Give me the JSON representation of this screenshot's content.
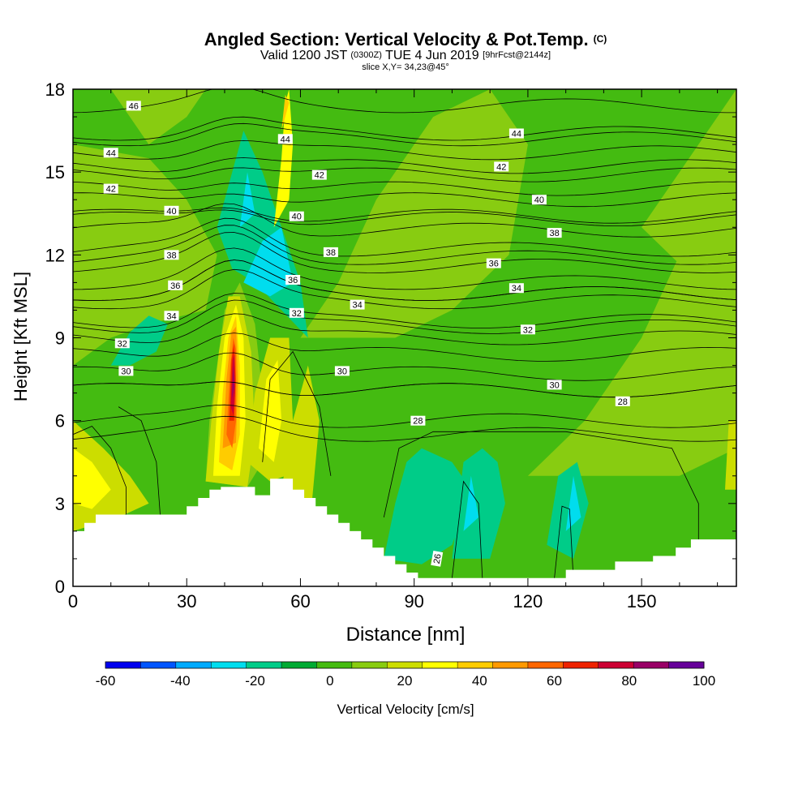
{
  "title": {
    "main": "Angled Section: Vertical Velocity & Pot.Temp.",
    "copyright": "(C)",
    "valid": "Valid 1200 JST",
    "utc": "(0300Z)",
    "date": "TUE 4 Jun 2019",
    "forecast": "[9hrFcst@2144z]",
    "slice": "slice X,Y= 34,23@45°"
  },
  "chart_data": {
    "type": "heatmap",
    "xlabel": "Distance [nm]",
    "ylabel": "Height [Kft MSL]",
    "xlim": [
      0,
      175
    ],
    "ylim": [
      0,
      18
    ],
    "x_ticks": [
      0,
      30,
      60,
      90,
      120,
      150
    ],
    "y_ticks": [
      0,
      3,
      6,
      9,
      12,
      15,
      18
    ],
    "colorbar": {
      "label": "Vertical Velocity [cm/s]",
      "tick_labels": [
        "-60",
        "-40",
        "-20",
        "0",
        "20",
        "40",
        "60",
        "80",
        "100"
      ],
      "bounds": [
        -60,
        -50,
        -40,
        -30,
        -20,
        -10,
        0,
        10,
        20,
        30,
        40,
        50,
        60,
        70,
        80,
        90,
        100
      ],
      "colors": [
        "#0000ee",
        "#0055ff",
        "#00aaff",
        "#00ddee",
        "#00cc88",
        "#00aa33",
        "#44bb11",
        "#88cc11",
        "#ccdd00",
        "#ffff00",
        "#ffcc00",
        "#ff9900",
        "#ff6600",
        "#ee2200",
        "#cc0033",
        "#990066",
        "#660099"
      ]
    },
    "background_value": 5,
    "regions": [
      {
        "value": 15,
        "poly": [
          [
            0,
            2
          ],
          [
            0,
            8
          ],
          [
            10,
            9
          ],
          [
            20,
            9.5
          ],
          [
            35,
            10
          ],
          [
            38,
            12
          ],
          [
            30,
            14
          ],
          [
            20,
            15.5
          ],
          [
            0,
            16
          ]
        ]
      },
      {
        "value": 15,
        "poly": [
          [
            60,
            9
          ],
          [
            70,
            11
          ],
          [
            80,
            14
          ],
          [
            95,
            17
          ],
          [
            110,
            18
          ],
          [
            120,
            16
          ],
          [
            115,
            12
          ],
          [
            100,
            10
          ],
          [
            85,
            9
          ]
        ]
      },
      {
        "value": 15,
        "poly": [
          [
            120,
            4
          ],
          [
            135,
            6
          ],
          [
            150,
            9
          ],
          [
            160,
            12
          ],
          [
            175,
            14
          ],
          [
            175,
            5
          ],
          [
            160,
            4
          ]
        ]
      },
      {
        "value": 15,
        "poly": [
          [
            10,
            18
          ],
          [
            20,
            16
          ],
          [
            30,
            17
          ],
          [
            35,
            18
          ]
        ]
      },
      {
        "value": 15,
        "poly": [
          [
            150,
            13
          ],
          [
            160,
            15
          ],
          [
            170,
            17
          ],
          [
            175,
            18
          ],
          [
            175,
            12
          ],
          [
            165,
            11
          ]
        ]
      },
      {
        "value": 25,
        "poly": [
          [
            0,
            2
          ],
          [
            0,
            6
          ],
          [
            8,
            5
          ],
          [
            15,
            4
          ],
          [
            20,
            3
          ],
          [
            12,
            2.5
          ]
        ]
      },
      {
        "value": 25,
        "poly": [
          [
            55,
            3.5
          ],
          [
            58,
            6
          ],
          [
            62,
            8
          ],
          [
            65,
            6
          ],
          [
            63,
            3
          ]
        ]
      },
      {
        "value": 35,
        "poly": [
          [
            0,
            3
          ],
          [
            0,
            5
          ],
          [
            5,
            4.5
          ],
          [
            10,
            3.5
          ],
          [
            5,
            2.8
          ]
        ]
      },
      {
        "value": -15,
        "poly": [
          [
            38,
            13
          ],
          [
            42,
            15
          ],
          [
            45,
            16.5
          ],
          [
            50,
            15
          ],
          [
            55,
            13
          ],
          [
            60,
            11
          ],
          [
            62,
            9
          ],
          [
            55,
            10
          ],
          [
            48,
            11
          ],
          [
            42,
            11.5
          ]
        ]
      },
      {
        "value": -15,
        "poly": [
          [
            10,
            8
          ],
          [
            15,
            9.2
          ],
          [
            20,
            9.8
          ],
          [
            25,
            9.5
          ],
          [
            22,
            8.5
          ],
          [
            15,
            8
          ]
        ]
      },
      {
        "value": -15,
        "poly": [
          [
            82,
            1
          ],
          [
            85,
            3
          ],
          [
            88,
            4.5
          ],
          [
            92,
            5
          ],
          [
            100,
            4.5
          ],
          [
            105,
            3.5
          ],
          [
            100,
            1.5
          ],
          [
            92,
            0.8
          ]
        ]
      },
      {
        "value": -15,
        "poly": [
          [
            100,
            1
          ],
          [
            103,
            4.5
          ],
          [
            108,
            5
          ],
          [
            112,
            4.5
          ],
          [
            114,
            3
          ],
          [
            110,
            1
          ]
        ]
      },
      {
        "value": -15,
        "poly": [
          [
            125,
            1.5
          ],
          [
            128,
            4
          ],
          [
            133,
            4.5
          ],
          [
            136,
            3
          ],
          [
            132,
            1
          ]
        ]
      },
      {
        "value": -25,
        "poly": [
          [
            45,
            11
          ],
          [
            50,
            12.5
          ],
          [
            55,
            13
          ],
          [
            58,
            11
          ],
          [
            52,
            10.5
          ]
        ]
      },
      {
        "value": -25,
        "poly": [
          [
            44,
            13
          ],
          [
            46,
            15
          ],
          [
            48,
            13.5
          ]
        ]
      },
      {
        "value": -25,
        "poly": [
          [
            103,
            2
          ],
          [
            105,
            4
          ],
          [
            107,
            2.5
          ]
        ]
      },
      {
        "value": -25,
        "poly": [
          [
            130,
            2
          ],
          [
            132,
            4
          ],
          [
            134,
            2.5
          ]
        ]
      },
      {
        "value": 15,
        "poly": [
          [
            35,
            3.8
          ],
          [
            36,
            6
          ],
          [
            38,
            8
          ],
          [
            40,
            10
          ],
          [
            44,
            11
          ],
          [
            48,
            9.5
          ],
          [
            50,
            7
          ],
          [
            50,
            4.5
          ],
          [
            46,
            3.6
          ]
        ]
      },
      {
        "value": 25,
        "poly": [
          [
            35,
            3.8
          ],
          [
            36.5,
            6
          ],
          [
            38.5,
            8.5
          ],
          [
            41,
            10.5
          ],
          [
            44,
            10.5
          ],
          [
            47,
            8.5
          ],
          [
            48,
            5.5
          ],
          [
            46,
            3.6
          ]
        ]
      },
      {
        "value": 25,
        "poly": [
          [
            46,
            4.5
          ],
          [
            48,
            7
          ],
          [
            52,
            9
          ],
          [
            57,
            9
          ],
          [
            58,
            6
          ],
          [
            56,
            4
          ],
          [
            52,
            3.8
          ]
        ]
      },
      {
        "value": 35,
        "poly": [
          [
            37,
            4
          ],
          [
            38,
            6.5
          ],
          [
            40,
            9
          ],
          [
            43,
            10.2
          ],
          [
            45,
            9
          ],
          [
            45.5,
            6
          ],
          [
            44,
            4
          ]
        ]
      },
      {
        "value": 35,
        "poly": [
          [
            49,
            5
          ],
          [
            51,
            7.5
          ],
          [
            54,
            8.2
          ],
          [
            55,
            6
          ],
          [
            53,
            4.5
          ]
        ]
      },
      {
        "value": 45,
        "poly": [
          [
            38.5,
            4.5
          ],
          [
            39.5,
            7
          ],
          [
            41,
            9
          ],
          [
            43,
            9.8
          ],
          [
            44,
            8
          ],
          [
            44,
            5.5
          ],
          [
            42,
            4.2
          ]
        ]
      },
      {
        "value": 55,
        "poly": [
          [
            39.5,
            5
          ],
          [
            40.5,
            7.5
          ],
          [
            41.8,
            9.2
          ],
          [
            43,
            9.4
          ],
          [
            43.5,
            7.5
          ],
          [
            43,
            5.2
          ]
        ]
      },
      {
        "value": 65,
        "poly": [
          [
            40.5,
            5.5
          ],
          [
            41.5,
            8
          ],
          [
            42.3,
            9
          ],
          [
            43,
            8.6
          ],
          [
            43,
            6
          ],
          [
            42,
            5
          ]
        ]
      },
      {
        "value": 75,
        "poly": [
          [
            41.2,
            6
          ],
          [
            41.8,
            8.2
          ],
          [
            42.5,
            8.8
          ],
          [
            42.9,
            7.5
          ],
          [
            42.5,
            6
          ]
        ]
      },
      {
        "value": 85,
        "poly": [
          [
            41.6,
            6.5
          ],
          [
            42.1,
            8.2
          ],
          [
            42.6,
            8.4
          ],
          [
            42.7,
            7
          ],
          [
            42.3,
            6.2
          ]
        ]
      },
      {
        "value": 95,
        "poly": [
          [
            41.9,
            6.8
          ],
          [
            42.3,
            8
          ],
          [
            42.6,
            7.2
          ]
        ]
      },
      {
        "value": 35,
        "poly": [
          [
            53,
            13
          ],
          [
            55,
            15.5
          ],
          [
            56,
            17.5
          ],
          [
            57,
            18
          ],
          [
            58,
            16
          ],
          [
            57,
            14
          ]
        ]
      },
      {
        "value": 45,
        "poly": [
          [
            55,
            16.5
          ],
          [
            56,
            17.8
          ],
          [
            57,
            17.5
          ]
        ]
      },
      {
        "value": 25,
        "poly": [
          [
            172,
            3.5
          ],
          [
            173,
            6
          ],
          [
            175,
            6
          ],
          [
            175,
            3.5
          ]
        ]
      }
    ],
    "terrain": [
      [
        0,
        2
      ],
      [
        3,
        2
      ],
      [
        3,
        2.3
      ],
      [
        6,
        2.3
      ],
      [
        6,
        2.6
      ],
      [
        30,
        2.6
      ],
      [
        30,
        2.9
      ],
      [
        33,
        2.9
      ],
      [
        33,
        3.2
      ],
      [
        36,
        3.2
      ],
      [
        36,
        3.5
      ],
      [
        39,
        3.5
      ],
      [
        39,
        3.6
      ],
      [
        48,
        3.6
      ],
      [
        48,
        3.3
      ],
      [
        52,
        3.3
      ],
      [
        52,
        3.9
      ],
      [
        58,
        3.9
      ],
      [
        58,
        3.5
      ],
      [
        61,
        3.5
      ],
      [
        61,
        3.2
      ],
      [
        64,
        3.2
      ],
      [
        64,
        2.9
      ],
      [
        67,
        2.9
      ],
      [
        67,
        2.6
      ],
      [
        70,
        2.6
      ],
      [
        70,
        2.3
      ],
      [
        73,
        2.3
      ],
      [
        73,
        2.0
      ],
      [
        76,
        2.0
      ],
      [
        76,
        1.7
      ],
      [
        79,
        1.7
      ],
      [
        79,
        1.4
      ],
      [
        82,
        1.4
      ],
      [
        82,
        1.1
      ],
      [
        85,
        1.1
      ],
      [
        85,
        0.8
      ],
      [
        88,
        0.8
      ],
      [
        88,
        0.5
      ],
      [
        91,
        0.5
      ],
      [
        91,
        0.3
      ],
      [
        130,
        0.3
      ],
      [
        130,
        0.6
      ],
      [
        143,
        0.6
      ],
      [
        143,
        0.9
      ],
      [
        153,
        0.9
      ],
      [
        153,
        1.1
      ],
      [
        159,
        1.1
      ],
      [
        159,
        1.4
      ],
      [
        163,
        1.4
      ],
      [
        163,
        1.7
      ],
      [
        175,
        1.7
      ]
    ],
    "isentropes": [
      {
        "value": 26,
        "label_x": 96,
        "label_y": 1.0,
        "label_rot": -80
      },
      {
        "value": 28,
        "base_y": 5.5,
        "label_x": 91,
        "label_y": 6.0
      },
      {
        "value": 28,
        "base_y": 6.0,
        "label_x": 145,
        "label_y": 6.7
      },
      {
        "value": 30,
        "base_y": 7.1,
        "label_x": 14,
        "label_y": 7.8
      },
      {
        "value": 30,
        "base_y": 7.7,
        "label_x": 71,
        "label_y": 7.8
      },
      {
        "value": 30,
        "base_y": 7.1,
        "label_x": 127,
        "label_y": 7.3
      },
      {
        "value": 32,
        "base_y": 8.4,
        "label_x": 13,
        "label_y": 8.8
      },
      {
        "value": 32,
        "base_y": 9.6,
        "label_x": 59,
        "label_y": 9.9
      },
      {
        "value": 32,
        "base_y": 9.0,
        "label_x": 120,
        "label_y": 9.3
      },
      {
        "value": 34,
        "base_y": 9.4,
        "label_x": 26,
        "label_y": 9.8
      },
      {
        "value": 34,
        "base_y": 10.3,
        "label_x": 75,
        "label_y": 10.2
      },
      {
        "value": 34,
        "base_y": 10.6,
        "label_x": 117,
        "label_y": 10.8
      },
      {
        "value": 36,
        "base_y": 10.6,
        "label_x": 27,
        "label_y": 10.9
      },
      {
        "value": 36,
        "base_y": 11.0,
        "label_x": 58,
        "label_y": 11.1
      },
      {
        "value": 36,
        "base_y": 11.6,
        "label_x": 111,
        "label_y": 11.7
      },
      {
        "value": 38,
        "base_y": 11.9,
        "label_x": 26,
        "label_y": 12.0
      },
      {
        "value": 38,
        "base_y": 12.2,
        "label_x": 68,
        "label_y": 12.1
      },
      {
        "value": 38,
        "base_y": 12.9,
        "label_x": 127,
        "label_y": 12.8
      },
      {
        "value": 40,
        "base_y": 13.4,
        "label_x": 26,
        "label_y": 13.6
      },
      {
        "value": 40,
        "base_y": 13.3,
        "label_x": 59,
        "label_y": 13.4
      },
      {
        "value": 40,
        "base_y": 14.0,
        "label_x": 123,
        "label_y": 14.0
      },
      {
        "value": 42,
        "base_y": 14.4,
        "label_x": 10,
        "label_y": 14.4
      },
      {
        "value": 42,
        "base_y": 14.9,
        "label_x": 65,
        "label_y": 14.9
      },
      {
        "value": 42,
        "base_y": 15.2,
        "label_x": 113,
        "label_y": 15.2
      },
      {
        "value": 44,
        "base_y": 15.7,
        "label_x": 10,
        "label_y": 15.7
      },
      {
        "value": 44,
        "base_y": 16.2,
        "label_x": 56,
        "label_y": 16.2
      },
      {
        "value": 44,
        "base_y": 16.4,
        "label_x": 117,
        "label_y": 16.4
      },
      {
        "value": 46,
        "base_y": 17.4,
        "label_x": 16,
        "label_y": 17.4
      }
    ]
  }
}
